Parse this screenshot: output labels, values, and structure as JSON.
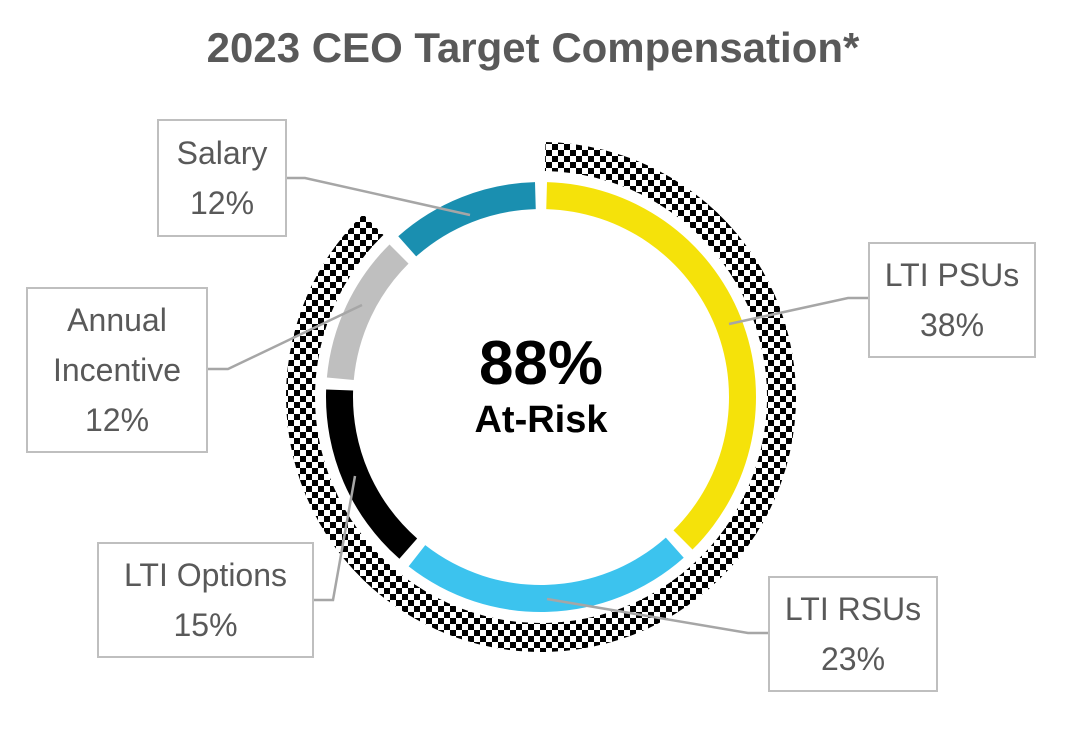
{
  "chart_data": {
    "type": "pie",
    "subtype": "donut",
    "title": "2023 CEO Target Compensation*",
    "categories": [
      "LTI PSUs",
      "LTI RSUs",
      "LTI Options",
      "Annual Incentive",
      "Salary"
    ],
    "values": [
      38,
      23,
      15,
      12,
      12
    ],
    "unit": "%",
    "colors": [
      "#F5E20A",
      "#3CC3EE",
      "#000000",
      "#BFBFBF",
      "#1A8FB0"
    ],
    "center_annotation": {
      "value": "88%",
      "label": "At-Risk"
    },
    "outer_ring": {
      "label": "At-Risk",
      "covers": [
        "LTI PSUs",
        "LTI RSUs",
        "LTI Options",
        "Annual Incentive"
      ],
      "value": 88,
      "pattern": "checkerboard"
    },
    "start_angle_deg": 0,
    "direction": "clockwise",
    "legend": "none (callout data labels)"
  },
  "title": "2023 CEO Target Compensation*",
  "center": {
    "value": "88%",
    "label": "At-Risk"
  },
  "labels": {
    "salary": {
      "name": "Salary",
      "value": "12%"
    },
    "annual": {
      "name1": "Annual",
      "name2": "Incentive",
      "value": "12%"
    },
    "options": {
      "name": "LTI Options",
      "value": "15%"
    },
    "psus": {
      "name": "LTI PSUs",
      "value": "38%"
    },
    "rsus": {
      "name": "LTI RSUs",
      "value": "23%"
    }
  }
}
